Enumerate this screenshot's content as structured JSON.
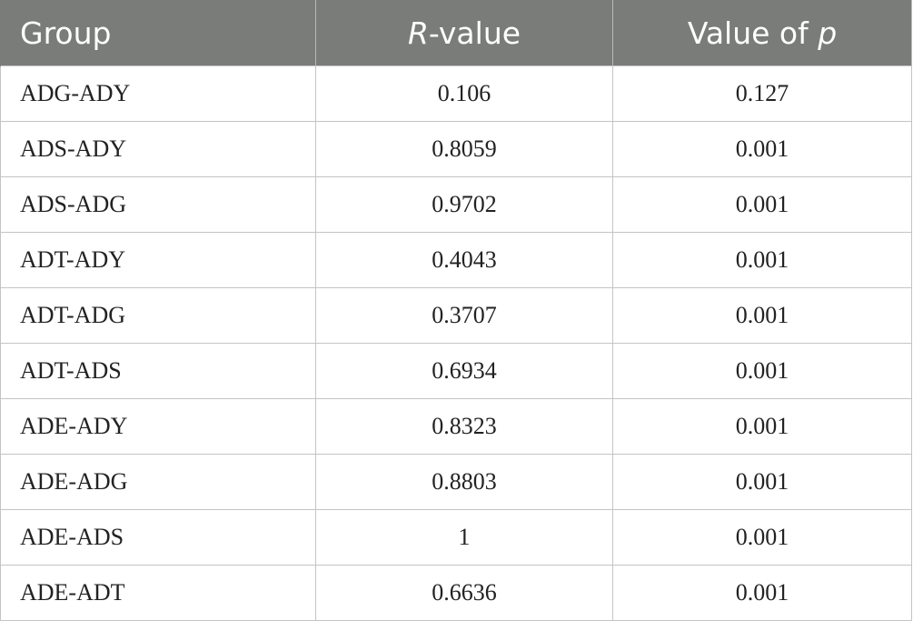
{
  "table": {
    "headers": {
      "group": "Group",
      "r_value_letter": "R",
      "r_value_suffix": "-value",
      "p_value_prefix": "Value of ",
      "p_value_letter": "p"
    },
    "rows": [
      {
        "group": "ADG-ADY",
        "r": "0.106",
        "p": "0.127"
      },
      {
        "group": "ADS-ADY",
        "r": "0.8059",
        "p": "0.001"
      },
      {
        "group": "ADS-ADG",
        "r": "0.9702",
        "p": "0.001"
      },
      {
        "group": "ADT-ADY",
        "r": "0.4043",
        "p": "0.001"
      },
      {
        "group": "ADT-ADG",
        "r": "0.3707",
        "p": "0.001"
      },
      {
        "group": "ADT-ADS",
        "r": "0.6934",
        "p": "0.001"
      },
      {
        "group": "ADE-ADY",
        "r": "0.8323",
        "p": "0.001"
      },
      {
        "group": "ADE-ADG",
        "r": "0.8803",
        "p": "0.001"
      },
      {
        "group": "ADE-ADS",
        "r": "1",
        "p": "0.001"
      },
      {
        "group": "ADE-ADT",
        "r": "0.6636",
        "p": "0.001"
      }
    ]
  },
  "colors": {
    "header_background": "#7a7c79",
    "header_text": "#ffffff",
    "border": "#c4c4c4"
  }
}
